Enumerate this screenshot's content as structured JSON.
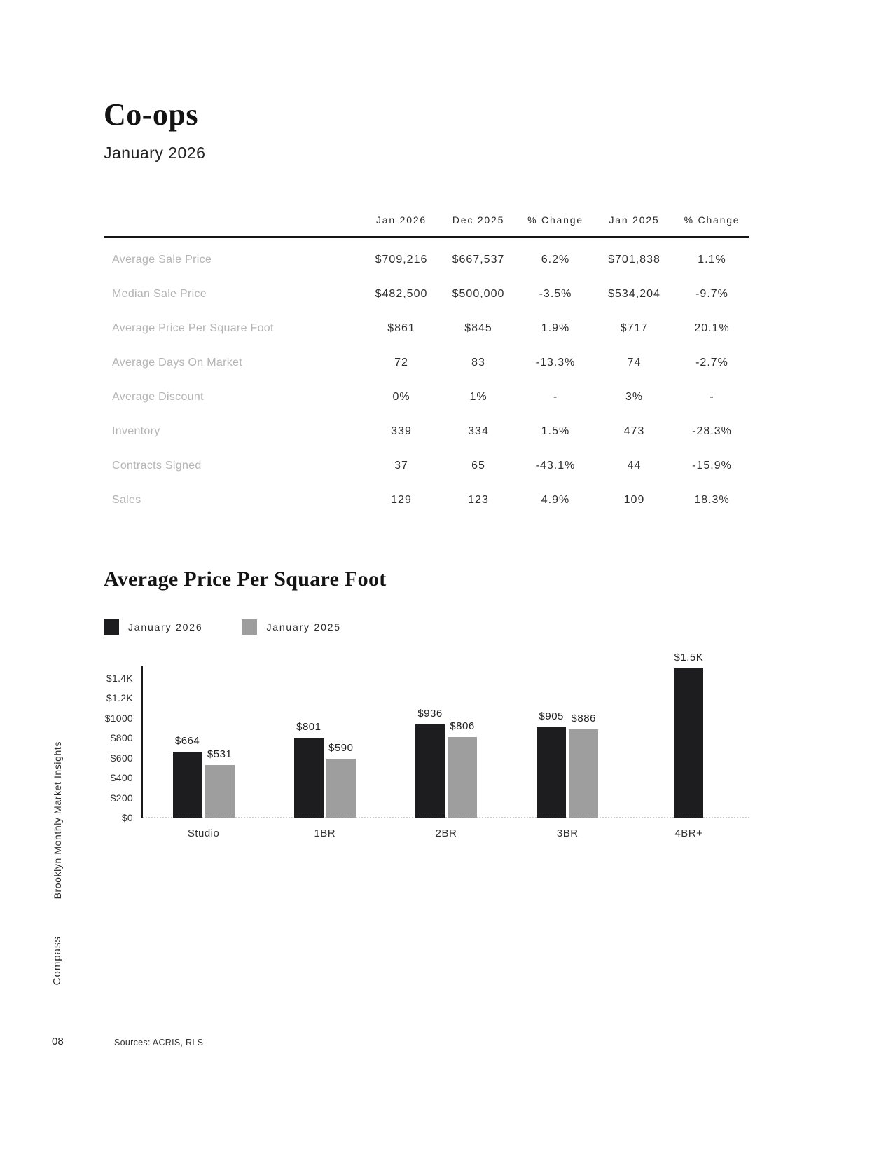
{
  "page": {
    "title": "Co-ops",
    "subtitle": "January 2026",
    "page_number": "08",
    "sources": "Sources: ACRIS, RLS",
    "sidebar_insights": "Brooklyn Monthly Market Insights",
    "sidebar_brand": "Compass"
  },
  "table": {
    "columns": [
      "Jan 2026",
      "Dec 2025",
      "% Change",
      "Jan 2025",
      "% Change"
    ],
    "rows": [
      {
        "label": "Average Sale Price",
        "values": [
          "$709,216",
          "$667,537",
          "6.2%",
          "$701,838",
          "1.1%"
        ]
      },
      {
        "label": "Median Sale Price",
        "values": [
          "$482,500",
          "$500,000",
          "-3.5%",
          "$534,204",
          "-9.7%"
        ]
      },
      {
        "label": "Average Price Per Square Foot",
        "values": [
          "$861",
          "$845",
          "1.9%",
          "$717",
          "20.1%"
        ]
      },
      {
        "label": "Average Days On Market",
        "values": [
          "72",
          "83",
          "-13.3%",
          "74",
          "-2.7%"
        ]
      },
      {
        "label": "Average Discount",
        "values": [
          "0%",
          "1%",
          "-",
          "3%",
          "-"
        ]
      },
      {
        "label": "Inventory",
        "values": [
          "339",
          "334",
          "1.5%",
          "473",
          "-28.3%"
        ]
      },
      {
        "label": "Contracts Signed",
        "values": [
          "37",
          "65",
          "-43.1%",
          "44",
          "-15.9%"
        ]
      },
      {
        "label": "Sales",
        "values": [
          "129",
          "123",
          "4.9%",
          "109",
          "18.3%"
        ]
      }
    ]
  },
  "chart": {
    "title": "Average Price Per Square Foot"
  },
  "chart_data": {
    "type": "bar",
    "title": "Average Price Per Square Foot",
    "categories": [
      "Studio",
      "1BR",
      "2BR",
      "3BR",
      "4BR+"
    ],
    "series": [
      {
        "name": "January 2026",
        "color": "#1d1d20",
        "values": [
          664,
          801,
          936,
          905,
          1500
        ],
        "labels": [
          "$664",
          "$801",
          "$936",
          "$905",
          "$1.5K"
        ]
      },
      {
        "name": "January 2025",
        "color": "#9e9e9e",
        "values": [
          531,
          590,
          806,
          886,
          null
        ],
        "labels": [
          "$531",
          "$590",
          "$806",
          "$886",
          null
        ]
      }
    ],
    "ylim": [
      0,
      1500
    ],
    "yticks": [
      0,
      200,
      400,
      600,
      800,
      1000,
      1200,
      1400
    ],
    "ytick_labels": [
      "$0",
      "$200",
      "$400",
      "$600",
      "$800",
      "$1000",
      "$1.2K",
      "$1.4K"
    ],
    "grid": false,
    "legend_position": "top-left"
  }
}
